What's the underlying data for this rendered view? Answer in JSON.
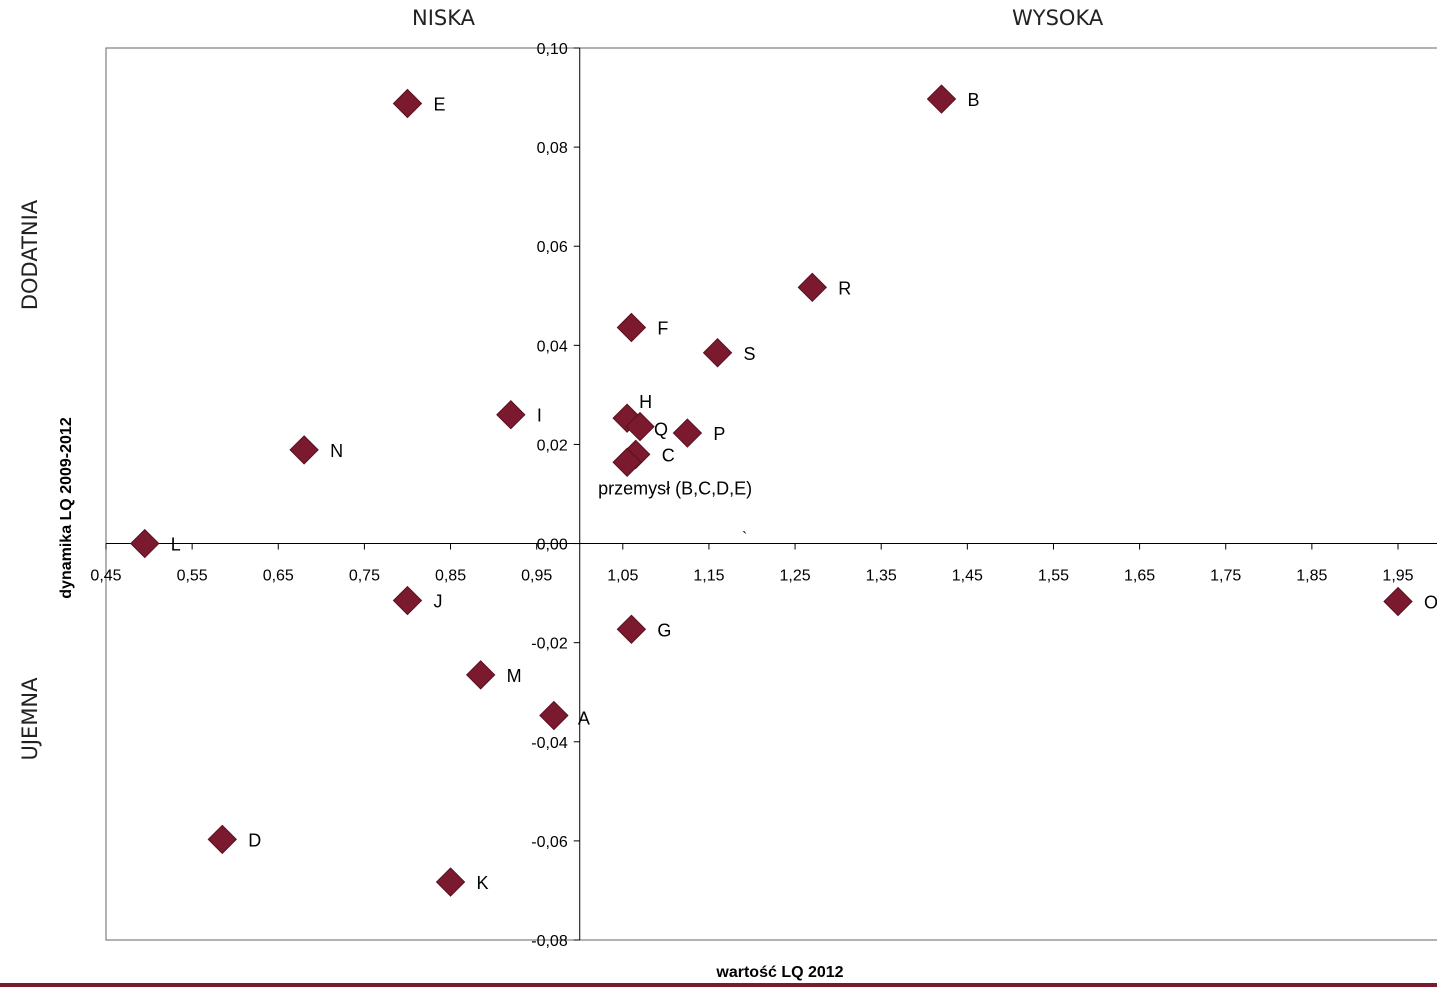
{
  "quadrants": {
    "top_left": "NISKA",
    "top_right": "WYSOKA",
    "left_top": "DODATNIA",
    "left_bottom": "UJEMNA"
  },
  "marker_color": "#7b1a2e",
  "chart_data": {
    "type": "scatter",
    "xlabel": "wartość LQ 2012",
    "ylabel": "dynamika LQ 2009-2012",
    "xlim": [
      0.45,
      1.95
    ],
    "ylim": [
      -0.08,
      0.1
    ],
    "x_ticks": [
      "0,45",
      "0,55",
      "0,65",
      "0,75",
      "0,85",
      "0,95",
      "1,05",
      "1,15",
      "1,25",
      "1,35",
      "1,45",
      "1,55",
      "1,65",
      "1,75",
      "1,85",
      "1,95"
    ],
    "y_ticks": [
      "0,10",
      "0,08",
      "0,06",
      "0,04",
      "0,02",
      "0,00",
      "-0,02",
      "-0,04",
      "-0,06",
      "-0,08"
    ],
    "x_tick_values": [
      0.45,
      0.55,
      0.65,
      0.75,
      0.85,
      0.95,
      1.05,
      1.15,
      1.25,
      1.35,
      1.45,
      1.55,
      1.65,
      1.75,
      1.85,
      1.95
    ],
    "y_tick_values": [
      0.1,
      0.08,
      0.06,
      0.04,
      0.02,
      0.0,
      -0.02,
      -0.04,
      -0.06,
      -0.08
    ],
    "crossing": {
      "x": 1.0,
      "y": 0.0
    },
    "stray_mark": "`",
    "points": [
      {
        "label": "B",
        "x": 1.42,
        "y": 0.0897
      },
      {
        "label": "E",
        "x": 0.8,
        "y": 0.0888
      },
      {
        "label": "R",
        "x": 1.27,
        "y": 0.0517
      },
      {
        "label": "F",
        "x": 1.06,
        "y": 0.0436
      },
      {
        "label": "S",
        "x": 1.16,
        "y": 0.0385
      },
      {
        "label": "I",
        "x": 0.92,
        "y": 0.026
      },
      {
        "label": "H",
        "x": 1.055,
        "y": 0.0253
      },
      {
        "label": "Q",
        "x": 1.07,
        "y": 0.0236
      },
      {
        "label": "P",
        "x": 1.125,
        "y": 0.0223
      },
      {
        "label": "N",
        "x": 0.68,
        "y": 0.0189
      },
      {
        "label": "C",
        "x": 1.065,
        "y": 0.018
      },
      {
        "label": "przemysł (B,C,D,E)",
        "x": 1.055,
        "y": 0.0164
      },
      {
        "label": "L",
        "x": 0.495,
        "y": 0.0
      },
      {
        "label": "J",
        "x": 0.8,
        "y": -0.0115
      },
      {
        "label": "O",
        "x": 1.95,
        "y": -0.0117
      },
      {
        "label": "G",
        "x": 1.06,
        "y": -0.0173
      },
      {
        "label": "M",
        "x": 0.885,
        "y": -0.0265
      },
      {
        "label": "A",
        "x": 0.97,
        "y": -0.0347
      },
      {
        "label": "D",
        "x": 0.585,
        "y": -0.0597
      },
      {
        "label": "K",
        "x": 0.85,
        "y": -0.0683
      }
    ]
  }
}
